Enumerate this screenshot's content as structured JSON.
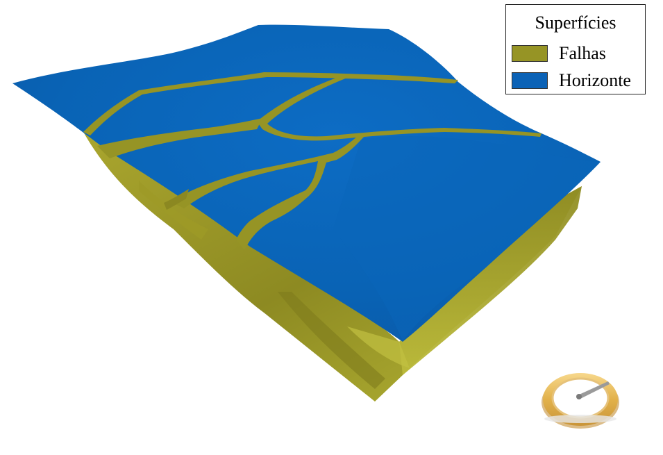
{
  "legend": {
    "title": "Superfícies",
    "items": [
      {
        "label": "Falhas",
        "color": "#969425"
      },
      {
        "label": "Horizonte",
        "color": "#0b62b6"
      }
    ]
  },
  "scene": {
    "surfaces": [
      "faults",
      "horizon"
    ],
    "horizon_color": "#0b62b6",
    "fault_color": "#969425"
  },
  "controls": {
    "orientation_widget": "compass-orientation-icon"
  }
}
